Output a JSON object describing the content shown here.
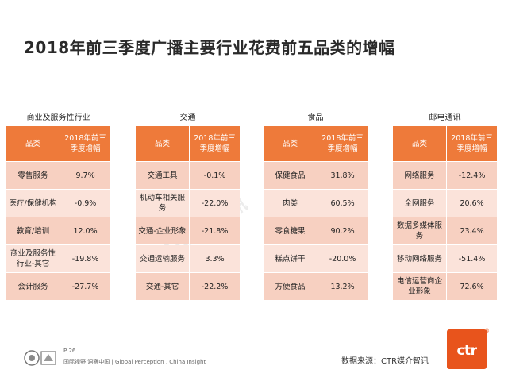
{
  "title": "2018年前三季度广播主要行业花费前五品类的增幅",
  "tables": [
    {
      "caption": "商业及服务性行业",
      "header": [
        "品类",
        "2018年前三季度增幅"
      ],
      "rows": [
        {
          "category": "零售服务",
          "value": "9.7%"
        },
        {
          "category": "医疗/保健机构",
          "value": "-0.9%"
        },
        {
          "category": "教育/培训",
          "value": "12.0%"
        },
        {
          "category": "商业及服务性行业-其它",
          "value": "-19.8%"
        },
        {
          "category": "会计服务",
          "value": "-27.7%"
        }
      ]
    },
    {
      "caption": "交通",
      "header": [
        "品类",
        "2018年前三季度增幅"
      ],
      "rows": [
        {
          "category": "交通工具",
          "value": "-0.1%"
        },
        {
          "category": "机动车相关服务",
          "value": "-22.0%"
        },
        {
          "category": "交通-企业形象",
          "value": "-21.8%"
        },
        {
          "category": "交通运输服务",
          "value": "3.3%"
        },
        {
          "category": "交通-其它",
          "value": "-22.2%"
        }
      ]
    },
    {
      "caption": "食品",
      "header": [
        "品类",
        "2018年前三季度增幅"
      ],
      "rows": [
        {
          "category": "保健食品",
          "value": "31.8%"
        },
        {
          "category": "肉类",
          "value": "60.5%"
        },
        {
          "category": "零食糖果",
          "value": "90.2%"
        },
        {
          "category": "糕点饼干",
          "value": "-20.0%"
        },
        {
          "category": "方便食品",
          "value": "13.2%"
        }
      ]
    },
    {
      "caption": "邮电通讯",
      "header": [
        "品类",
        "2018年前三季度增幅"
      ],
      "rows": [
        {
          "category": "网络服务",
          "value": "-12.4%"
        },
        {
          "category": "全网服务",
          "value": "20.6%"
        },
        {
          "category": "数据多媒体服务",
          "value": "23.4%"
        },
        {
          "category": "移动网络服务",
          "value": "-51.4%"
        },
        {
          "category": "电信运营商企业形象",
          "value": "72.6%"
        }
      ]
    }
  ],
  "watermark": "CTR媒介智讯",
  "footer": {
    "page": "P 26",
    "tagline": "国际视野 洞察中国 | Global Perception , China Insight",
    "source": "数据来源：CTR媒介智讯",
    "logo_text": "ctr",
    "logo_reg": "®"
  }
}
